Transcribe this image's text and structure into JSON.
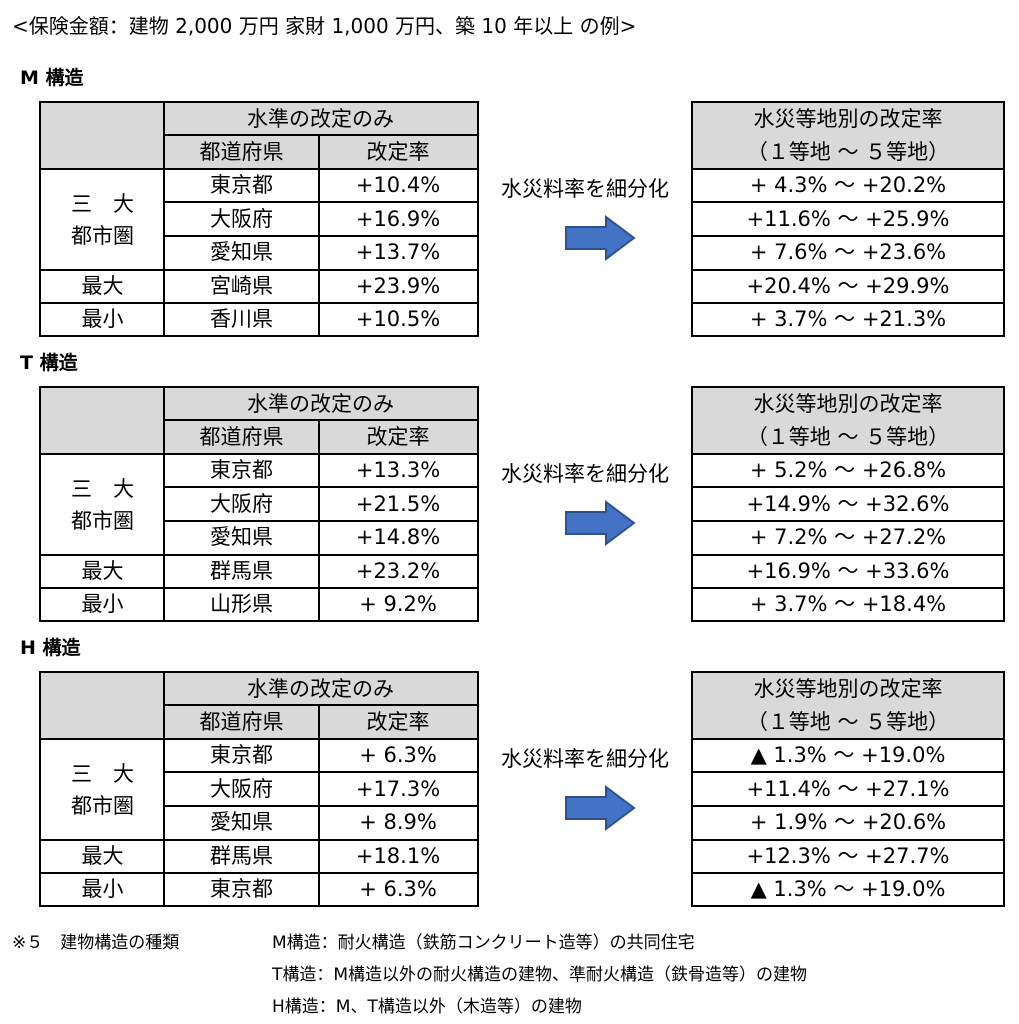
{
  "caption": "<保険金額：建物 2,000 万円 家財 1,000 万円、築 10 年以上 の例>",
  "headers": {
    "level_only": "水準の改定のみ",
    "prefecture": "都道府県",
    "rate": "改定率",
    "zone_rate": "水災等地別の改定率",
    "zone_range": "（１等地 ～ ５等地）",
    "subdivide": "水災料率を細分化"
  },
  "groups": {
    "metro_line1": "三　大",
    "metro_line2": "都市圏",
    "max": "最大",
    "min": "最小"
  },
  "sections": [
    {
      "title": "M 構造",
      "rows": [
        {
          "pref": "東京都",
          "rate": "+10.4%",
          "range": "+ 4.3% ～ +20.2%"
        },
        {
          "pref": "大阪府",
          "rate": "+16.9%",
          "range": "+11.6% ～ +25.9%"
        },
        {
          "pref": "愛知県",
          "rate": "+13.7%",
          "range": "+ 7.6% ～ +23.6%"
        },
        {
          "pref": "宮崎県",
          "rate": "+23.9%",
          "range": "+20.4% ～ +29.9%"
        },
        {
          "pref": "香川県",
          "rate": "+10.5%",
          "range": "+ 3.7% ～ +21.3%"
        }
      ]
    },
    {
      "title": "T 構造",
      "rows": [
        {
          "pref": "東京都",
          "rate": "+13.3%",
          "range": "+ 5.2% ～ +26.8%"
        },
        {
          "pref": "大阪府",
          "rate": "+21.5%",
          "range": "+14.9% ～ +32.6%"
        },
        {
          "pref": "愛知県",
          "rate": "+14.8%",
          "range": "+ 7.2% ～ +27.2%"
        },
        {
          "pref": "群馬県",
          "rate": "+23.2%",
          "range": "+16.9% ～ +33.6%"
        },
        {
          "pref": "山形県",
          "rate": "+ 9.2%",
          "range": "+ 3.7% ～ +18.4%"
        }
      ]
    },
    {
      "title": "H 構造",
      "rows": [
        {
          "pref": "東京都",
          "rate": "+ 6.3%",
          "range": "▲ 1.3% ～ +19.0%"
        },
        {
          "pref": "大阪府",
          "rate": "+17.3%",
          "range": "+11.4% ～ +27.1%"
        },
        {
          "pref": "愛知県",
          "rate": "+ 8.9%",
          "range": "+ 1.9% ～ +20.6%"
        },
        {
          "pref": "群馬県",
          "rate": "+18.1%",
          "range": "+12.3% ～ +27.7%"
        },
        {
          "pref": "東京都",
          "rate": "+ 6.3%",
          "range": "▲ 1.3% ～ +19.0%"
        }
      ]
    }
  ],
  "notes": {
    "label": "※５　建物構造の種類",
    "m": "M構造：耐火構造（鉄筋コンクリート造等）の共同住宅",
    "t": "T構造：M構造以外の耐火構造の建物、準耐火構造（鉄骨造等）の建物",
    "h": "H構造：M、T構造以外（木造等）の建物"
  },
  "colors": {
    "header_gray": "#d9d9d9",
    "arrow_fill": "#4472c4",
    "arrow_stroke": "#2f528f"
  },
  "icons": {
    "arrow": "right-arrow-icon"
  }
}
